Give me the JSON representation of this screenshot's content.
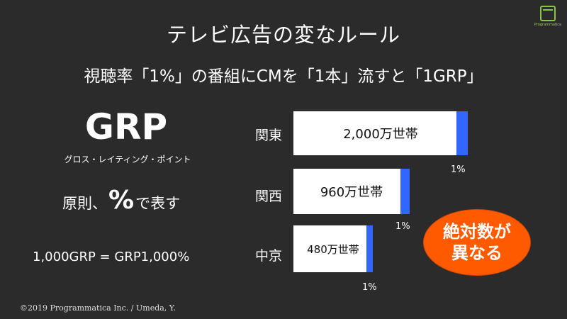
{
  "logo": {
    "text": "Programmatica"
  },
  "title": "テレビ広告の変なルール",
  "subtitle": "視聴率「1%」の番組にCMを「1本」流すと「1GRP」",
  "grp": {
    "heading": "GRP",
    "reading": "グロス・レイティング・ポイント",
    "rule_prefix": "原則、",
    "rule_symbol": "%",
    "rule_suffix": "で表す",
    "formula": "1,000GRP = GRP1,000%"
  },
  "regions": [
    {
      "name": "関東",
      "households": "2,000万世帯",
      "rating": "1%",
      "households_value": 2000
    },
    {
      "name": "関西",
      "households": "960万世帯",
      "rating": "1%",
      "households_value": 960
    },
    {
      "name": "中京",
      "households": "480万世帯",
      "rating": "1%",
      "households_value": 480
    }
  ],
  "callout": {
    "line1": "絶対数が",
    "line2": "異なる"
  },
  "footer": "©2019 Programmatica Inc. / Umeda, Y.",
  "colors": {
    "background": "#2b2b2b",
    "bar": "#ffffff",
    "bar_cap": "#3366ff",
    "callout": "#ff5a00",
    "logo": "#8bc34a"
  }
}
